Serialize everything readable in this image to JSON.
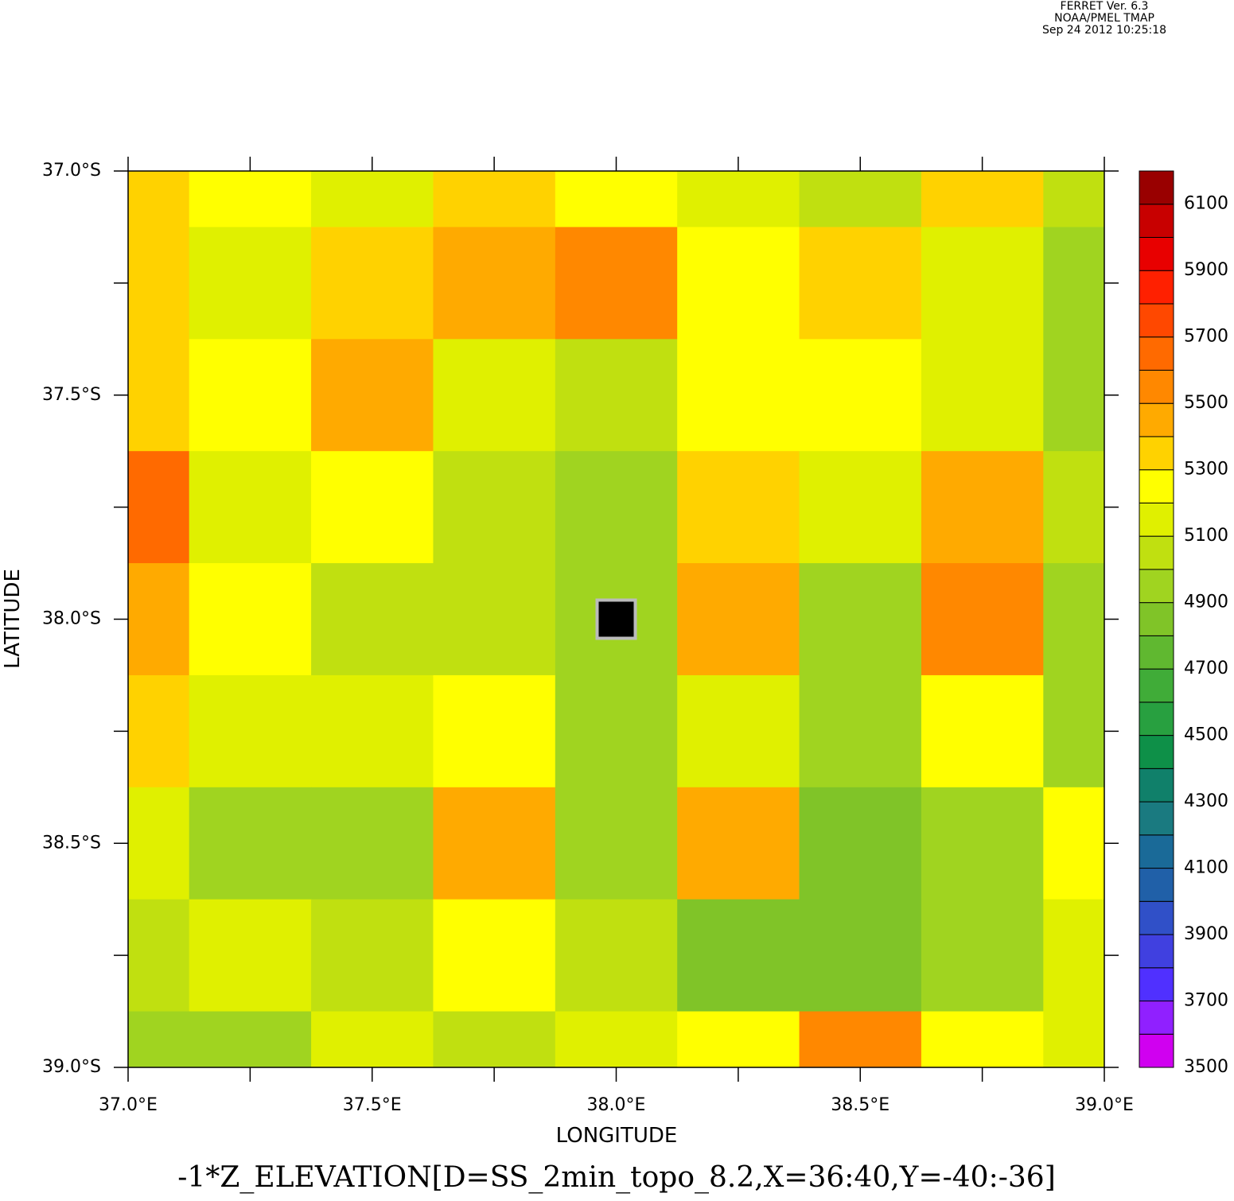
{
  "header": [
    "FERRET Ver. 6.3",
    "NOAA/PMEL TMAP",
    "Sep 24 2012 10:25:18"
  ],
  "chart_data": {
    "type": "contour",
    "title": "-1*Z_ELEVATION[D=SS_2min_topo_8.2,X=36:40,Y=-40:-36]",
    "x_label": "LONGITUDE",
    "y_label": "LATITUDE",
    "xlim": [
      37.0,
      39.0
    ],
    "ylim": [
      -39.0,
      -37.0
    ],
    "xticks": [
      {
        "value": 37.0,
        "label": "37.0°E"
      },
      {
        "value": 37.5,
        "label": "37.5°E"
      },
      {
        "value": 38.0,
        "label": "38.0°E"
      },
      {
        "value": 38.5,
        "label": "38.5°E"
      },
      {
        "value": 39.0,
        "label": "39.0°E"
      }
    ],
    "xminorticks": [
      37.25,
      37.75,
      38.25,
      38.75
    ],
    "yticks": [
      {
        "value": -37.0,
        "label": "37.0°S"
      },
      {
        "value": -37.5,
        "label": "37.5°S"
      },
      {
        "value": -38.0,
        "label": "38.0°S"
      },
      {
        "value": -38.5,
        "label": "38.5°S"
      },
      {
        "value": -39.0,
        "label": "39.0°S"
      }
    ],
    "yminorticks": [
      -37.25,
      -37.75,
      -38.25,
      -38.75
    ],
    "x": [
      37.0,
      37.25,
      37.5,
      37.75,
      38.0,
      38.25,
      38.5,
      38.75,
      39.0
    ],
    "y": [
      -37.0,
      -37.25,
      -37.5,
      -37.75,
      -38.0,
      -38.25,
      -38.5,
      -38.75,
      -39.0
    ],
    "z": [
      [
        5350,
        5250,
        5150,
        5300,
        5250,
        5150,
        5050,
        5300,
        5050
      ],
      [
        5350,
        5150,
        5300,
        5450,
        5550,
        5200,
        5350,
        5100,
        4950
      ],
      [
        5300,
        5250,
        5450,
        5150,
        5050,
        5250,
        5200,
        5150,
        4950
      ],
      [
        5600,
        5150,
        5250,
        5050,
        4950,
        5350,
        5100,
        5400,
        5000
      ],
      [
        5400,
        5250,
        5050,
        5050,
        4900,
        5450,
        4900,
        5500,
        4950
      ],
      [
        5350,
        5150,
        5150,
        5250,
        4950,
        5100,
        4950,
        5250,
        4950
      ],
      [
        5150,
        4950,
        4900,
        5450,
        4950,
        5400,
        4800,
        4900,
        5250
      ],
      [
        5000,
        5100,
        5050,
        5200,
        5050,
        4850,
        4850,
        4950,
        5100
      ],
      [
        4900,
        4950,
        5100,
        5050,
        5150,
        5250,
        5550,
        5200,
        5150
      ]
    ],
    "marker": {
      "x": 38.0,
      "y": -38.0
    },
    "colorbar": {
      "levels": [
        3500,
        3600,
        3700,
        3800,
        3900,
        4000,
        4100,
        4200,
        4300,
        4400,
        4500,
        4600,
        4700,
        4800,
        4900,
        5000,
        5100,
        5200,
        5300,
        5400,
        5500,
        5600,
        5700,
        5800,
        5900,
        6000,
        6100,
        6200
      ],
      "colors": [
        "#d000f0",
        "#9020ff",
        "#5030ff",
        "#4040e0",
        "#3050c8",
        "#2060a8",
        "#1a6a98",
        "#1a7a80",
        "#10806a",
        "#0e9048",
        "#28a040",
        "#40ac38",
        "#60b830",
        "#80c428",
        "#a0d420",
        "#c0e010",
        "#e0f000",
        "#ffff00",
        "#ffd200",
        "#ffaa00",
        "#ff8800",
        "#ff6a00",
        "#ff4800",
        "#ff2000",
        "#e80000",
        "#c80000",
        "#990000"
      ],
      "ticks": [
        3500,
        3700,
        3900,
        4100,
        4300,
        4500,
        4700,
        4900,
        5100,
        5300,
        5500,
        5700,
        5900,
        6100
      ]
    }
  }
}
